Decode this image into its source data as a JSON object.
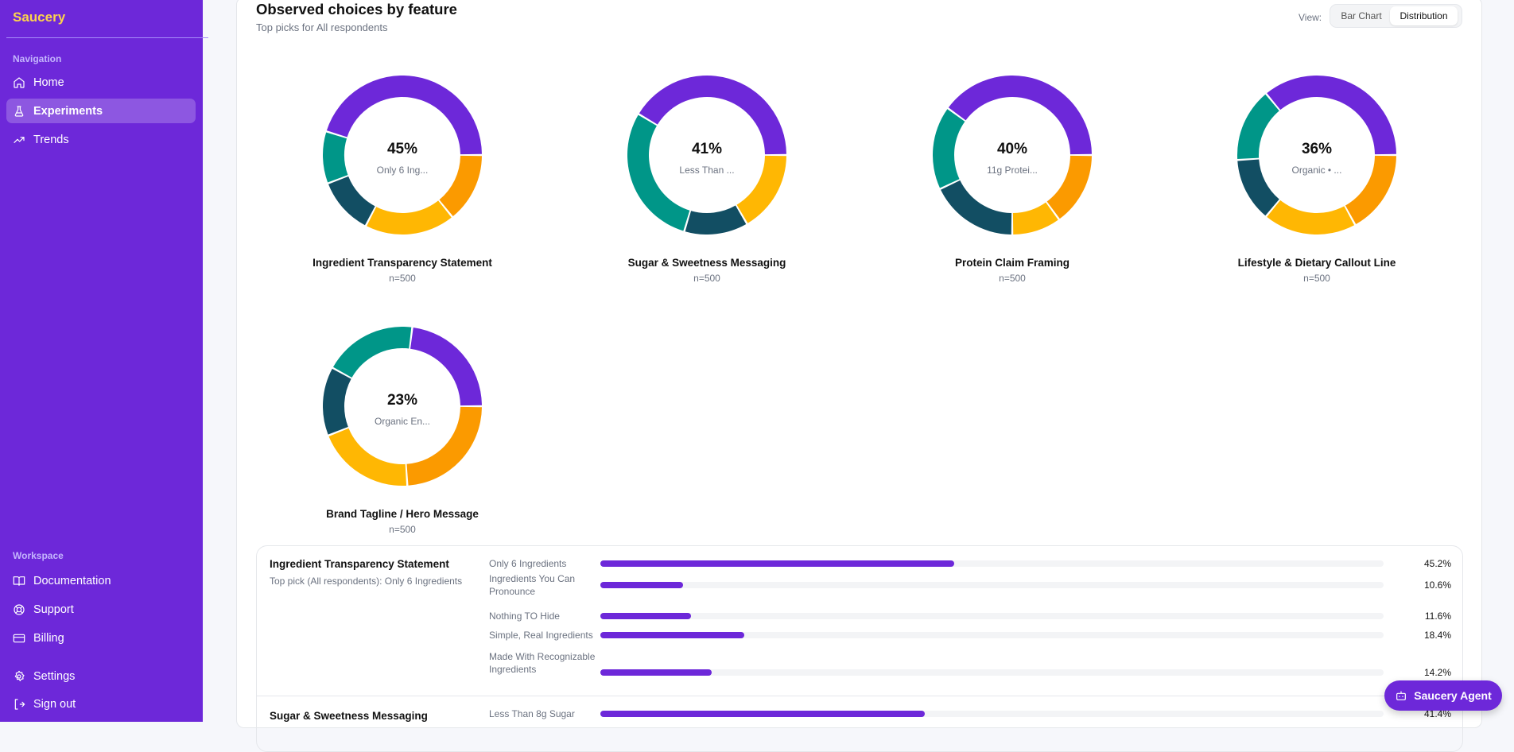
{
  "app": {
    "name": "Saucery"
  },
  "sidebar": {
    "nav_label": "Navigation",
    "nav": [
      {
        "label": "Home",
        "icon": "home-icon"
      },
      {
        "label": "Experiments",
        "icon": "flask-icon",
        "active": true
      },
      {
        "label": "Trends",
        "icon": "trending-up-icon"
      }
    ],
    "workspace_label": "Workspace",
    "workspace": [
      {
        "label": "Documentation",
        "icon": "book-icon"
      },
      {
        "label": "Support",
        "icon": "lifebuoy-icon"
      },
      {
        "label": "Billing",
        "icon": "credit-card-icon"
      }
    ],
    "bottom": [
      {
        "label": "Settings",
        "icon": "gear-icon"
      },
      {
        "label": "Sign out",
        "icon": "sign-out-icon"
      }
    ]
  },
  "header": {
    "title": "Observed choices by feature",
    "subtitle": "Top picks for All respondents",
    "view_label": "View:",
    "view_options": [
      "Bar Chart",
      "Distribution"
    ],
    "view_selected": "Distribution"
  },
  "colors": {
    "segments": [
      "#6d28d9",
      "#009688",
      "#124e63",
      "#ffb703",
      "#fb9a00"
    ],
    "accent": "#6d28d9"
  },
  "chart_data": [
    {
      "type": "pie",
      "title": "Ingredient Transparency Statement",
      "n": "n=500",
      "center_pct": "45%",
      "center_label": "Only 6 Ing...",
      "values": [
        45.2,
        10.6,
        11.6,
        18.4,
        14.2
      ]
    },
    {
      "type": "pie",
      "title": "Sugar & Sweetness Messaging",
      "n": "n=500",
      "center_pct": "41%",
      "center_label": "Less Than ...",
      "values": [
        41.4,
        29,
        13,
        16.6
      ]
    },
    {
      "type": "pie",
      "title": "Protein Claim Framing",
      "n": "n=500",
      "center_pct": "40%",
      "center_label": "11g Protei...",
      "values": [
        40,
        17,
        18,
        10,
        15
      ]
    },
    {
      "type": "pie",
      "title": "Lifestyle & Dietary Callout Line",
      "n": "n=500",
      "center_pct": "36%",
      "center_label": "Organic • ...",
      "values": [
        36,
        15,
        13,
        19,
        17
      ]
    },
    {
      "type": "pie",
      "title": "Brand Tagline / Hero Message",
      "n": "n=500",
      "center_pct": "23%",
      "center_label": "Organic En...",
      "values": [
        23,
        19,
        14,
        20,
        24
      ]
    }
  ],
  "breakdown": [
    {
      "title": "Ingredient Transparency Statement",
      "subtitle": "Top pick (All respondents): Only 6 Ingredients",
      "options": [
        {
          "label": "Only 6 Ingredients",
          "value": 45.2,
          "pct": "45.2%"
        },
        {
          "label": "Ingredients You Can Pronounce",
          "value": 10.6,
          "pct": "10.6%"
        },
        {
          "label": "Nothing TO Hide",
          "value": 11.6,
          "pct": "11.6%"
        },
        {
          "label": "Simple, Real Ingredients",
          "value": 18.4,
          "pct": "18.4%"
        },
        {
          "label": "Made With Recognizable Ingredients",
          "value": 14.2,
          "pct": "14.2%"
        }
      ]
    },
    {
      "title": "Sugar & Sweetness Messaging",
      "options": [
        {
          "label": "Less Than 8g Sugar",
          "value": 41.4,
          "pct": "41.4%"
        }
      ]
    }
  ],
  "agent_button": "Saucery Agent"
}
